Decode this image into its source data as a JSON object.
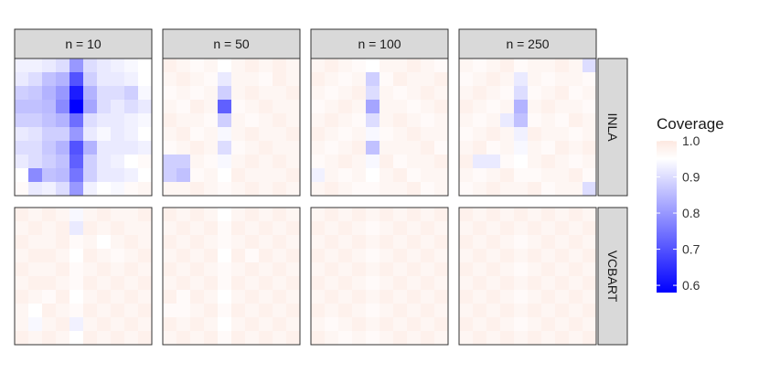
{
  "chart_data": {
    "type": "heatmap",
    "title": "",
    "columns": [
      "n = 10",
      "n = 50",
      "n = 100",
      "n = 250"
    ],
    "rows": [
      "INLA",
      "VCBART"
    ],
    "grid_size": [
      10,
      10
    ],
    "legend": {
      "title": "Coverage",
      "ticks": [
        "1.0",
        "0.9",
        "0.8",
        "0.7",
        "0.6"
      ],
      "tick_values": [
        1.0,
        0.9,
        0.8,
        0.7,
        0.6
      ],
      "range": [
        0.58,
        1.0
      ],
      "midpoint": 0.95,
      "colors": {
        "low": "#0000ff",
        "mid": "#ffffff",
        "high": "#fde8e0"
      },
      "placement": "right"
    },
    "panels": [
      {
        "row": "INLA",
        "column": "n = 10",
        "values": [
          [
            0.93,
            0.93,
            0.92,
            0.9,
            0.8,
            0.9,
            0.92,
            0.93,
            0.94,
            0.95
          ],
          [
            0.92,
            0.9,
            0.86,
            0.84,
            0.7,
            0.88,
            0.92,
            0.92,
            0.93,
            0.95
          ],
          [
            0.88,
            0.87,
            0.84,
            0.8,
            0.62,
            0.84,
            0.9,
            0.9,
            0.88,
            0.94
          ],
          [
            0.86,
            0.86,
            0.85,
            0.78,
            0.58,
            0.82,
            0.9,
            0.92,
            0.9,
            0.92
          ],
          [
            0.88,
            0.88,
            0.86,
            0.84,
            0.74,
            0.9,
            0.92,
            0.92,
            0.93,
            0.94
          ],
          [
            0.92,
            0.91,
            0.88,
            0.88,
            0.8,
            0.92,
            0.94,
            0.92,
            0.93,
            0.95
          ],
          [
            0.9,
            0.9,
            0.87,
            0.84,
            0.7,
            0.84,
            0.92,
            0.92,
            0.92,
            0.93
          ],
          [
            0.92,
            0.9,
            0.88,
            0.86,
            0.72,
            0.88,
            0.92,
            0.93,
            0.95,
            0.96
          ],
          [
            0.95,
            0.78,
            0.86,
            0.85,
            0.75,
            0.88,
            0.92,
            0.92,
            0.93,
            0.95
          ],
          [
            0.96,
            0.92,
            0.93,
            0.9,
            0.8,
            0.93,
            0.95,
            0.94,
            0.96,
            0.97
          ]
        ]
      },
      {
        "row": "INLA",
        "column": "n = 50",
        "values": [
          [
            0.98,
            0.97,
            0.96,
            0.97,
            0.95,
            0.97,
            0.98,
            0.97,
            0.98,
            0.97
          ],
          [
            0.97,
            0.98,
            0.97,
            0.96,
            0.92,
            0.97,
            0.97,
            0.96,
            0.98,
            0.97
          ],
          [
            0.96,
            0.97,
            0.96,
            0.97,
            0.88,
            0.97,
            0.98,
            0.97,
            0.97,
            0.98
          ],
          [
            0.97,
            0.96,
            0.98,
            0.97,
            0.72,
            0.96,
            0.97,
            0.98,
            0.97,
            0.97
          ],
          [
            0.98,
            0.97,
            0.97,
            0.96,
            0.88,
            0.97,
            0.96,
            0.97,
            0.98,
            0.97
          ],
          [
            0.97,
            0.98,
            0.96,
            0.97,
            0.94,
            0.97,
            0.98,
            0.97,
            0.97,
            0.98
          ],
          [
            0.96,
            0.97,
            0.98,
            0.97,
            0.9,
            0.96,
            0.97,
            0.98,
            0.97,
            0.97
          ],
          [
            0.88,
            0.88,
            0.97,
            0.96,
            0.94,
            0.97,
            0.98,
            0.97,
            0.98,
            0.97
          ],
          [
            0.88,
            0.86,
            0.96,
            0.97,
            0.95,
            0.98,
            0.97,
            0.97,
            0.97,
            0.98
          ],
          [
            0.97,
            0.97,
            0.98,
            0.97,
            0.96,
            0.97,
            0.98,
            0.97,
            0.98,
            0.97
          ]
        ]
      },
      {
        "row": "INLA",
        "column": "n = 100",
        "values": [
          [
            0.97,
            0.98,
            0.97,
            0.96,
            0.95,
            0.97,
            0.97,
            0.98,
            0.97,
            0.96
          ],
          [
            0.98,
            0.97,
            0.96,
            0.97,
            0.88,
            0.96,
            0.98,
            0.97,
            0.97,
            0.98
          ],
          [
            0.97,
            0.96,
            0.97,
            0.98,
            0.9,
            0.97,
            0.96,
            0.97,
            0.98,
            0.97
          ],
          [
            0.96,
            0.97,
            0.98,
            0.97,
            0.82,
            0.97,
            0.97,
            0.96,
            0.97,
            0.98
          ],
          [
            0.97,
            0.98,
            0.97,
            0.96,
            0.9,
            0.97,
            0.98,
            0.97,
            0.96,
            0.97
          ],
          [
            0.98,
            0.97,
            0.96,
            0.97,
            0.94,
            0.96,
            0.97,
            0.98,
            0.97,
            0.97
          ],
          [
            0.97,
            0.96,
            0.97,
            0.98,
            0.86,
            0.97,
            0.97,
            0.97,
            0.98,
            0.96
          ],
          [
            0.96,
            0.97,
            0.98,
            0.97,
            0.94,
            0.98,
            0.96,
            0.97,
            0.97,
            0.98
          ],
          [
            0.93,
            0.97,
            0.96,
            0.97,
            0.95,
            0.97,
            0.98,
            0.96,
            0.97,
            0.97
          ],
          [
            0.97,
            0.98,
            0.97,
            0.96,
            0.96,
            0.97,
            0.97,
            0.98,
            0.96,
            0.97
          ]
        ]
      },
      {
        "row": "INLA",
        "column": "n = 250",
        "values": [
          [
            0.97,
            0.96,
            0.97,
            0.98,
            0.96,
            0.97,
            0.97,
            0.98,
            0.97,
            0.9
          ],
          [
            0.96,
            0.97,
            0.98,
            0.97,
            0.92,
            0.97,
            0.96,
            0.97,
            0.97,
            0.96
          ],
          [
            0.97,
            0.98,
            0.97,
            0.96,
            0.9,
            0.96,
            0.97,
            0.98,
            0.96,
            0.97
          ],
          [
            0.98,
            0.97,
            0.96,
            0.97,
            0.84,
            0.97,
            0.98,
            0.97,
            0.97,
            0.96
          ],
          [
            0.97,
            0.96,
            0.97,
            0.92,
            0.86,
            0.96,
            0.97,
            0.96,
            0.98,
            0.97
          ],
          [
            0.96,
            0.97,
            0.98,
            0.97,
            0.93,
            0.98,
            0.97,
            0.97,
            0.96,
            0.97
          ],
          [
            0.97,
            0.98,
            0.96,
            0.97,
            0.94,
            0.97,
            0.96,
            0.98,
            0.97,
            0.98
          ],
          [
            0.98,
            0.92,
            0.92,
            0.96,
            0.95,
            0.97,
            0.98,
            0.97,
            0.96,
            0.97
          ],
          [
            0.97,
            0.96,
            0.97,
            0.98,
            0.96,
            0.96,
            0.97,
            0.97,
            0.98,
            0.96
          ],
          [
            0.96,
            0.97,
            0.98,
            0.97,
            0.97,
            0.98,
            0.96,
            0.97,
            0.97,
            0.9
          ]
        ]
      },
      {
        "row": "VCBART",
        "column": "n = 10",
        "values": [
          [
            0.98,
            0.97,
            0.98,
            0.97,
            0.94,
            0.97,
            0.98,
            0.97,
            0.97,
            0.98
          ],
          [
            0.97,
            0.98,
            0.97,
            0.98,
            0.92,
            0.98,
            0.97,
            0.98,
            0.97,
            0.97
          ],
          [
            0.98,
            0.97,
            0.97,
            0.98,
            0.96,
            0.97,
            0.95,
            0.97,
            0.98,
            0.97
          ],
          [
            0.97,
            0.98,
            0.98,
            0.97,
            0.95,
            0.98,
            0.97,
            0.96,
            0.97,
            0.98
          ],
          [
            0.98,
            0.97,
            0.97,
            0.98,
            0.96,
            0.97,
            0.98,
            0.97,
            0.98,
            0.97
          ],
          [
            0.97,
            0.98,
            0.98,
            0.97,
            0.96,
            0.98,
            0.97,
            0.98,
            0.97,
            0.98
          ],
          [
            0.98,
            0.97,
            0.96,
            0.98,
            0.95,
            0.97,
            0.98,
            0.97,
            0.98,
            0.97
          ],
          [
            0.97,
            0.95,
            0.98,
            0.97,
            0.96,
            0.98,
            0.97,
            0.98,
            0.97,
            0.98
          ],
          [
            0.97,
            0.94,
            0.97,
            0.98,
            0.93,
            0.97,
            0.98,
            0.97,
            0.98,
            0.97
          ],
          [
            0.98,
            0.97,
            0.98,
            0.97,
            0.95,
            0.98,
            0.97,
            0.98,
            0.97,
            0.98
          ]
        ]
      },
      {
        "row": "VCBART",
        "column": "n = 50",
        "values": [
          [
            0.98,
            0.97,
            0.98,
            0.97,
            0.95,
            0.97,
            0.98,
            0.97,
            0.98,
            0.97
          ],
          [
            0.97,
            0.98,
            0.97,
            0.98,
            0.96,
            0.98,
            0.97,
            0.98,
            0.97,
            0.98
          ],
          [
            0.98,
            0.97,
            0.98,
            0.97,
            0.96,
            0.97,
            0.98,
            0.97,
            0.98,
            0.97
          ],
          [
            0.97,
            0.98,
            0.97,
            0.98,
            0.95,
            0.98,
            0.96,
            0.98,
            0.97,
            0.98
          ],
          [
            0.98,
            0.97,
            0.98,
            0.97,
            0.96,
            0.97,
            0.98,
            0.97,
            0.98,
            0.97
          ],
          [
            0.97,
            0.98,
            0.97,
            0.98,
            0.96,
            0.98,
            0.97,
            0.98,
            0.97,
            0.98
          ],
          [
            0.98,
            0.96,
            0.98,
            0.97,
            0.95,
            0.97,
            0.98,
            0.97,
            0.98,
            0.97
          ],
          [
            0.96,
            0.96,
            0.97,
            0.98,
            0.96,
            0.98,
            0.97,
            0.98,
            0.97,
            0.98
          ],
          [
            0.98,
            0.97,
            0.98,
            0.97,
            0.95,
            0.97,
            0.98,
            0.97,
            0.98,
            0.97
          ],
          [
            0.97,
            0.98,
            0.97,
            0.98,
            0.96,
            0.98,
            0.97,
            0.98,
            0.97,
            0.98
          ]
        ]
      },
      {
        "row": "VCBART",
        "column": "n = 100",
        "values": [
          [
            0.97,
            0.98,
            0.97,
            0.98,
            0.97,
            0.98,
            0.97,
            0.98,
            0.97,
            0.98
          ],
          [
            0.98,
            0.97,
            0.98,
            0.97,
            0.96,
            0.97,
            0.98,
            0.97,
            0.98,
            0.97
          ],
          [
            0.97,
            0.98,
            0.97,
            0.98,
            0.97,
            0.98,
            0.97,
            0.98,
            0.97,
            0.98
          ],
          [
            0.98,
            0.97,
            0.98,
            0.97,
            0.96,
            0.97,
            0.98,
            0.97,
            0.98,
            0.97
          ],
          [
            0.97,
            0.98,
            0.97,
            0.98,
            0.97,
            0.98,
            0.97,
            0.98,
            0.97,
            0.98
          ],
          [
            0.98,
            0.97,
            0.98,
            0.97,
            0.96,
            0.97,
            0.98,
            0.97,
            0.98,
            0.97
          ],
          [
            0.97,
            0.98,
            0.97,
            0.98,
            0.97,
            0.98,
            0.97,
            0.98,
            0.97,
            0.98
          ],
          [
            0.98,
            0.97,
            0.98,
            0.97,
            0.96,
            0.97,
            0.98,
            0.97,
            0.98,
            0.97
          ],
          [
            0.97,
            0.96,
            0.97,
            0.98,
            0.97,
            0.98,
            0.97,
            0.98,
            0.97,
            0.98
          ],
          [
            0.98,
            0.97,
            0.96,
            0.97,
            0.96,
            0.97,
            0.98,
            0.97,
            0.98,
            0.97
          ]
        ]
      },
      {
        "row": "VCBART",
        "column": "n = 250",
        "values": [
          [
            0.98,
            0.97,
            0.98,
            0.97,
            0.98,
            0.97,
            0.98,
            0.97,
            0.98,
            0.97
          ],
          [
            0.97,
            0.98,
            0.97,
            0.98,
            0.97,
            0.98,
            0.97,
            0.98,
            0.97,
            0.98
          ],
          [
            0.98,
            0.97,
            0.98,
            0.97,
            0.96,
            0.97,
            0.98,
            0.97,
            0.98,
            0.97
          ],
          [
            0.97,
            0.98,
            0.97,
            0.98,
            0.97,
            0.98,
            0.97,
            0.98,
            0.97,
            0.98
          ],
          [
            0.98,
            0.97,
            0.98,
            0.97,
            0.96,
            0.97,
            0.98,
            0.97,
            0.98,
            0.97
          ],
          [
            0.97,
            0.98,
            0.97,
            0.98,
            0.97,
            0.98,
            0.97,
            0.98,
            0.97,
            0.98
          ],
          [
            0.98,
            0.97,
            0.98,
            0.97,
            0.96,
            0.97,
            0.98,
            0.97,
            0.98,
            0.97
          ],
          [
            0.97,
            0.98,
            0.97,
            0.98,
            0.97,
            0.98,
            0.97,
            0.98,
            0.97,
            0.98
          ],
          [
            0.98,
            0.97,
            0.98,
            0.97,
            0.96,
            0.97,
            0.98,
            0.97,
            0.98,
            0.97
          ],
          [
            0.97,
            0.98,
            0.97,
            0.98,
            0.97,
            0.98,
            0.97,
            0.98,
            0.97,
            0.98
          ]
        ]
      }
    ]
  }
}
